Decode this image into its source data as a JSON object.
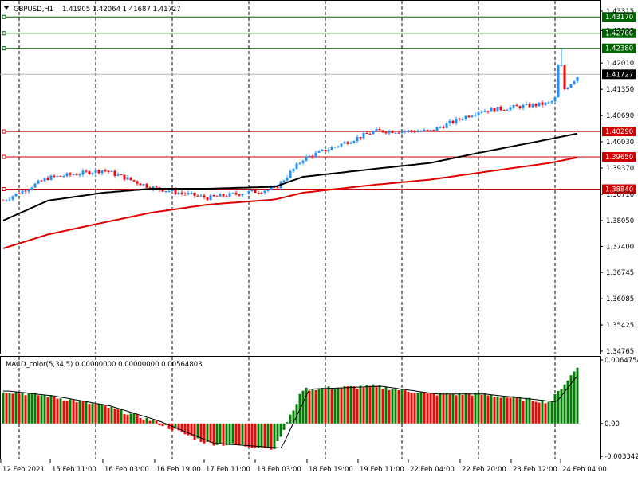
{
  "header": {
    "symbol": "GBPUSD,H1",
    "ohlc": "1.41905 1.42064 1.41687 1.41727"
  },
  "macd_header": "MACD_color(5,34,5) 0.00000000 0.00000000 0.00564803",
  "colors": {
    "bull": "#00a000",
    "bear": "#ff0000",
    "ma_fast": "#000000",
    "ma_slow": "#e00000",
    "level_green": "#006400",
    "level_red": "#d00000",
    "grid": "#000000"
  },
  "price_axis": {
    "ticks": [
      "1.43315",
      "1.42825",
      "1.42010",
      "1.41350",
      "1.40690",
      "1.40030",
      "1.39370",
      "1.38710",
      "1.38050",
      "1.37400",
      "1.36745",
      "1.36085",
      "1.35425",
      "1.34765"
    ],
    "current": "1.41727"
  },
  "levels": [
    {
      "value": "1.43170",
      "type": "resistance"
    },
    {
      "value": "1.42760",
      "type": "resistance"
    },
    {
      "value": "1.42380",
      "type": "resistance"
    },
    {
      "value": "1.40290",
      "type": "support"
    },
    {
      "value": "1.39650",
      "type": "support"
    },
    {
      "value": "1.38840",
      "type": "support"
    }
  ],
  "macd_axis": {
    "ticks": [
      "0.0064754",
      "0.00",
      "-0.0033426"
    ]
  },
  "time_axis": {
    "labels": [
      "12 Feb 2021",
      "15 Feb 11:00",
      "16 Feb 03:00",
      "16 Feb 19:00",
      "17 Feb 11:00",
      "18 Feb 03:00",
      "18 Feb 19:00",
      "19 Feb 11:00",
      "22 Feb 04:00",
      "22 Feb 20:00",
      "23 Feb 12:00",
      "24 Feb 04:00"
    ]
  },
  "chart_data": {
    "type": "candlestick",
    "anchors": [
      {
        "t": "12 Feb 2021",
        "close": 1.3855
      },
      {
        "t": "15 Feb 11:00",
        "close": 1.3912
      },
      {
        "t": "16 Feb 03:00",
        "close": 1.3932
      },
      {
        "t": "16 Feb 19:00",
        "close": 1.3888
      },
      {
        "t": "17 Feb 11:00",
        "close": 1.3862
      },
      {
        "t": "18 Feb 03:00",
        "close": 1.3885
      },
      {
        "t": "18 Feb 19:00",
        "close": 1.396
      },
      {
        "t": "19 Feb 11:00",
        "close": 1.403
      },
      {
        "t": "22 Feb 04:00",
        "close": 1.403
      },
      {
        "t": "22 Feb 20:00",
        "close": 1.408
      },
      {
        "t": "23 Feb 12:00",
        "close": 1.41
      },
      {
        "t": "24 Feb 04:00",
        "close": 1.4173
      }
    ],
    "ma_fast_anchors": [
      1.3805,
      1.3855,
      1.3875,
      1.3885,
      1.3885,
      1.389,
      1.3915,
      1.3935,
      1.395,
      1.3975,
      1.401,
      1.4025
    ],
    "ma_slow_anchors": [
      1.3735,
      1.377,
      1.38,
      1.3825,
      1.3845,
      1.3858,
      1.3875,
      1.3895,
      1.3908,
      1.3925,
      1.395,
      1.3965
    ],
    "macd_anchors": [
      0.0033,
      0.0028,
      0.0018,
      0.0003,
      -0.002,
      -0.0025,
      0.0035,
      0.0038,
      0.003,
      0.003,
      0.0022,
      0.006
    ]
  }
}
